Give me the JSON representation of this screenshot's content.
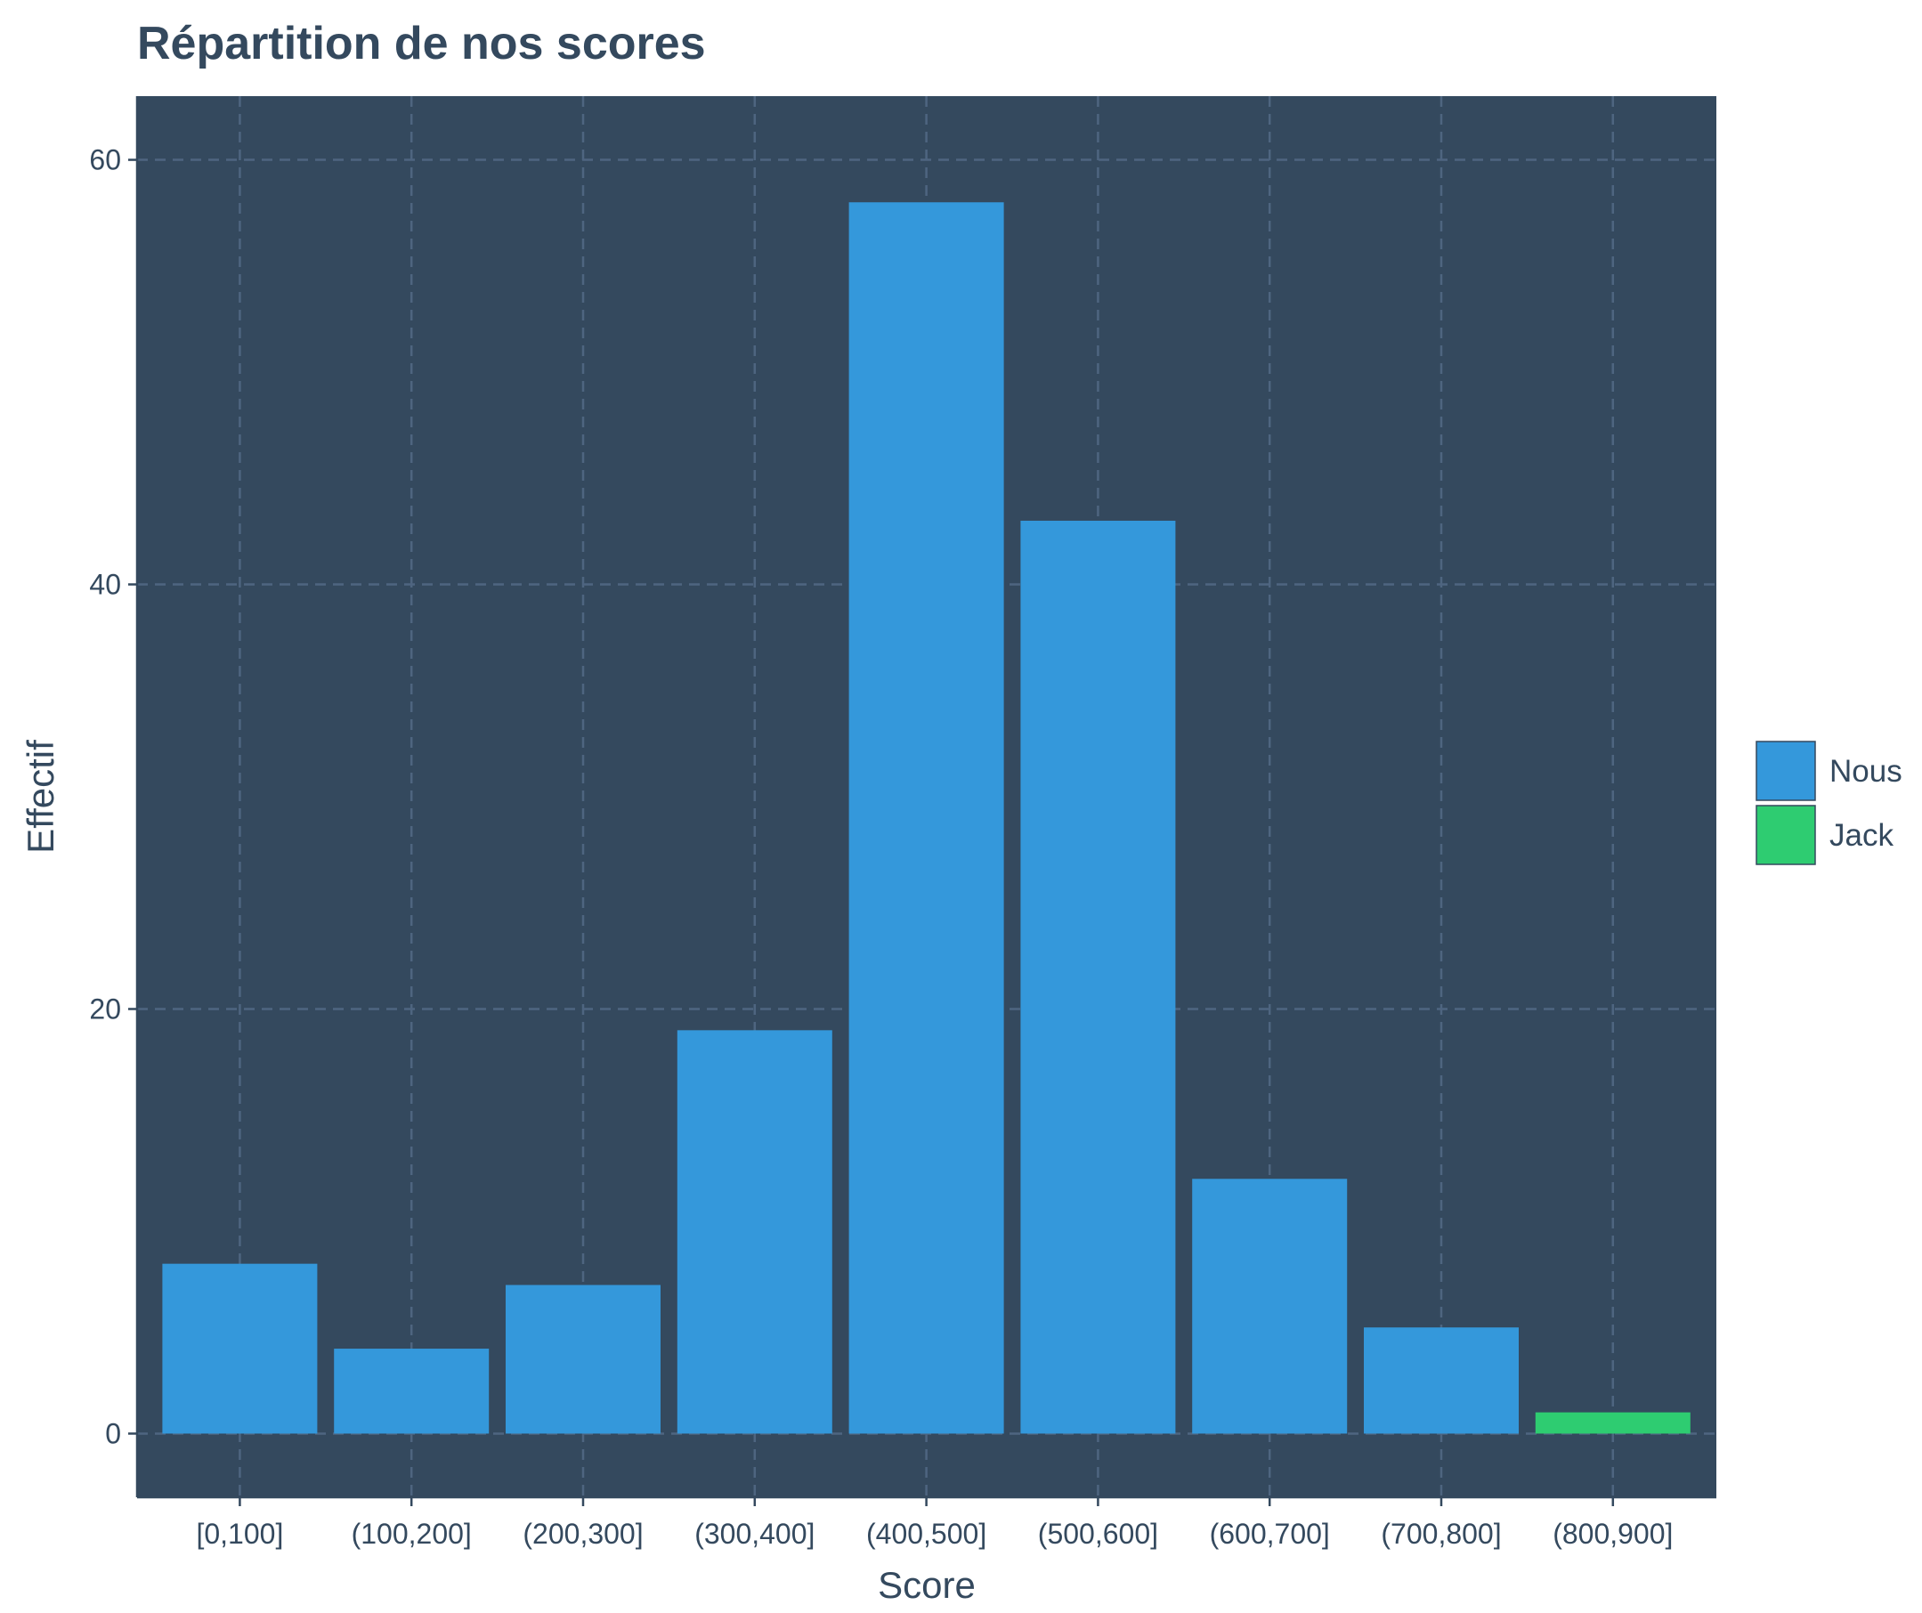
{
  "chart_data": {
    "type": "bar",
    "title": "Répartition de nos scores",
    "xlabel": "Score",
    "ylabel": "Effectif",
    "categories": [
      "[0,100]",
      "(100,200]",
      "(200,300]",
      "(300,400]",
      "(400,500]",
      "(500,600]",
      "(600,700]",
      "(700,800]",
      "(800,900]"
    ],
    "series": [
      {
        "name": "Nous",
        "color": "#3498db",
        "values": [
          8,
          4,
          7,
          19,
          58,
          43,
          12,
          5,
          0
        ]
      },
      {
        "name": "Jack",
        "color": "#2ecc71",
        "values": [
          0,
          0,
          0,
          0,
          0,
          0,
          0,
          0,
          1
        ]
      }
    ],
    "ylim": [
      -3,
      63
    ],
    "yticks": [
      0,
      20,
      40,
      60
    ],
    "grid": true,
    "legend_position": "right",
    "panel_color": "#34495e",
    "grid_color": "#4e6580",
    "text_color": "#34495e"
  }
}
